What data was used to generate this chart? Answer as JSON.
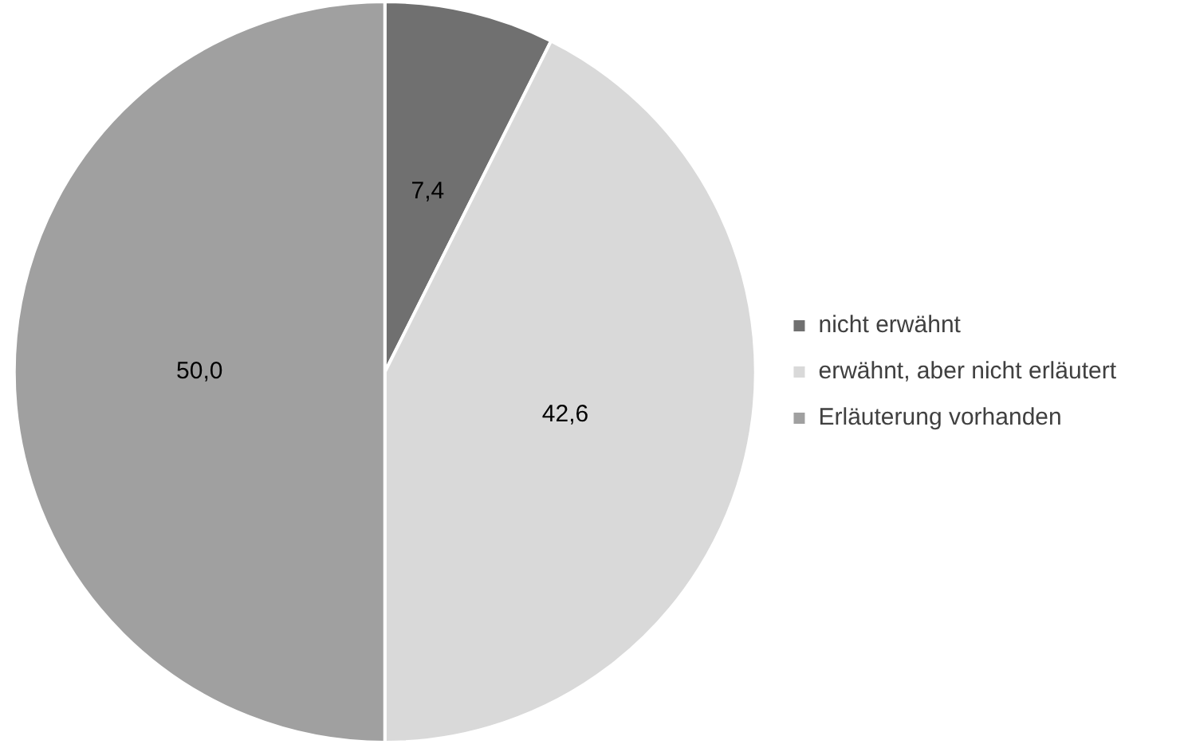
{
  "chart_data": {
    "type": "pie",
    "categories": [
      "nicht erwähnt",
      "erwähnt, aber nicht erläutert",
      "Erläuterung vorhanden"
    ],
    "values": [
      7.4,
      42.6,
      50.0
    ],
    "colors": [
      "#707070",
      "#d9d9d9",
      "#a0a0a0"
    ],
    "value_labels": [
      "7,4",
      "42,6",
      "50,0"
    ],
    "legend": "right"
  }
}
